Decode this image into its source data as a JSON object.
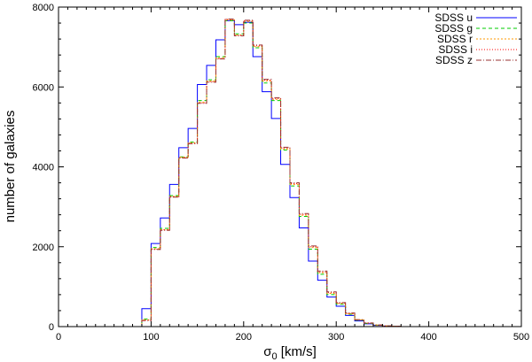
{
  "chart_data": {
    "type": "histogram",
    "title": "",
    "xlabel": "σ0 [km/s]",
    "xlabel_main": "σ",
    "xlabel_sub": "0",
    "xlabel_rest": " [km/s]",
    "ylabel": "number of galaxies",
    "xlim": [
      0,
      500
    ],
    "ylim": [
      0,
      8000
    ],
    "xticks": [
      "0",
      "100",
      "200",
      "300",
      "400",
      "500"
    ],
    "yticks": [
      "0",
      "2000",
      "4000",
      "6000",
      "8000"
    ],
    "grid": false,
    "legend_position": "top-right",
    "bin_width": 10,
    "bin_edges_start": 90,
    "series": [
      {
        "name": "SDSS u",
        "color": "#0000ff",
        "dash": "",
        "values": [
          450,
          2080,
          2720,
          3560,
          4480,
          4960,
          6060,
          6540,
          7180,
          7660,
          7560,
          7620,
          6760,
          5880,
          5210,
          4060,
          3230,
          2470,
          1640,
          1160,
          740,
          510,
          280,
          140,
          70,
          30,
          15,
          6
        ]
      },
      {
        "name": "SDSS g",
        "color": "#00cc00",
        "dash": "4,3",
        "values": [
          190,
          1980,
          2460,
          3280,
          4250,
          4620,
          5660,
          6180,
          6760,
          7660,
          7330,
          7600,
          6980,
          6100,
          5660,
          4420,
          3520,
          2760,
          1940,
          1310,
          800,
          560,
          310,
          160,
          80,
          35,
          15,
          6
        ]
      },
      {
        "name": "SDSS r",
        "color": "#ff9900",
        "dash": "2,2",
        "values": [
          170,
          1950,
          2430,
          3260,
          4240,
          4600,
          5620,
          6150,
          6730,
          7680,
          7300,
          7640,
          7010,
          6150,
          5690,
          4450,
          3560,
          2790,
          1980,
          1350,
          830,
          580,
          320,
          165,
          85,
          38,
          16,
          7
        ]
      },
      {
        "name": "SDSS i",
        "color": "#ff0000",
        "dash": "1,2",
        "values": [
          160,
          1940,
          2420,
          3250,
          4230,
          4590,
          5600,
          6130,
          6710,
          7690,
          7290,
          7660,
          7030,
          6170,
          5710,
          4470,
          3580,
          2810,
          2000,
          1370,
          850,
          590,
          330,
          170,
          90,
          40,
          17,
          7
        ]
      },
      {
        "name": "SDSS z",
        "color": "#993333",
        "dash": "6,2,1,2",
        "values": [
          150,
          1930,
          2410,
          3240,
          4220,
          4580,
          5590,
          6120,
          6700,
          7700,
          7280,
          7670,
          7050,
          6190,
          5730,
          4490,
          3600,
          2830,
          2020,
          1390,
          870,
          600,
          340,
          175,
          92,
          42,
          18,
          8
        ]
      }
    ]
  }
}
